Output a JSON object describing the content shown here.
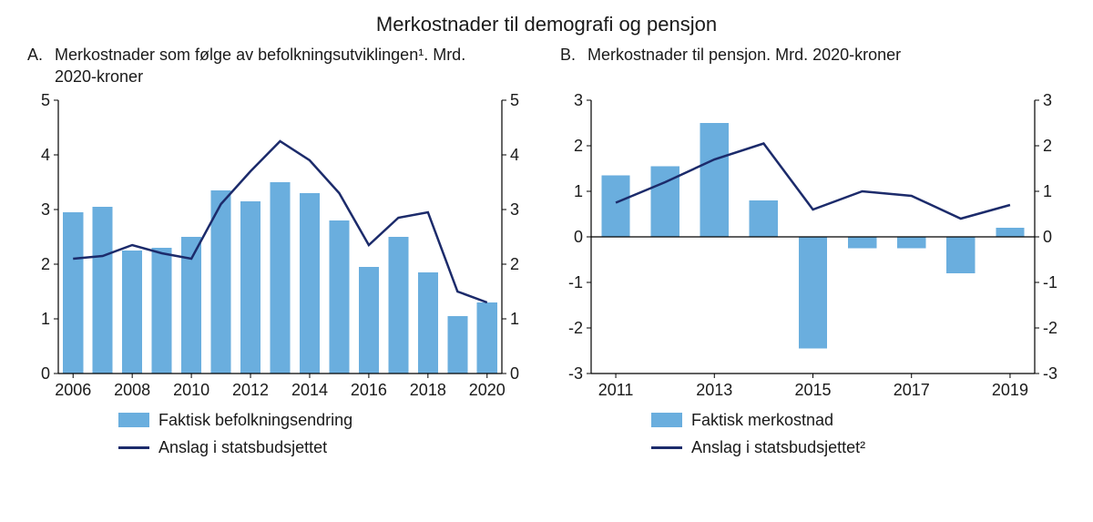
{
  "title": "Merkostnader til demografi og pensjon",
  "colors": {
    "bar": "#6aaede",
    "line": "#1c2b6b",
    "axis": "#000000",
    "text": "#1a1a1a",
    "background": "#ffffff"
  },
  "panelA": {
    "letter": "A.",
    "subtitle": "Merkostnader som følge av befolkningsutviklingen¹. Mrd. 2020-kroner",
    "type": "bar+line",
    "x_labels": [
      "2006",
      "",
      "2008",
      "",
      "2010",
      "",
      "2012",
      "",
      "2014",
      "",
      "2016",
      "",
      "2018",
      "",
      "2020"
    ],
    "years": [
      2006,
      2007,
      2008,
      2009,
      2010,
      2011,
      2012,
      2013,
      2014,
      2015,
      2016,
      2017,
      2018,
      2019,
      2020
    ],
    "bars": [
      2.95,
      3.05,
      2.25,
      2.3,
      2.5,
      3.35,
      3.15,
      3.5,
      3.3,
      2.8,
      1.95,
      2.5,
      1.85,
      1.05,
      1.3
    ],
    "line": [
      2.1,
      2.15,
      2.35,
      2.2,
      2.1,
      3.1,
      3.7,
      4.25,
      3.9,
      3.3,
      2.35,
      2.85,
      2.95,
      1.5,
      1.3
    ],
    "ylim": [
      0,
      5
    ],
    "ytick_step": 1,
    "bar_width": 0.68,
    "legend": {
      "bar": "Faktisk befolkningsendring",
      "line": "Anslag i statsbudsjettet"
    },
    "axis_fontsize": 18,
    "line_width": 2.5
  },
  "panelB": {
    "letter": "B.",
    "subtitle": "Merkostnader til pensjon. Mrd. 2020-kroner",
    "type": "bar+line",
    "x_labels": [
      "2011",
      "",
      "2013",
      "",
      "2015",
      "",
      "2017",
      "",
      "2019"
    ],
    "years": [
      2011,
      2012,
      2013,
      2014,
      2015,
      2016,
      2017,
      2018,
      2019
    ],
    "bars": [
      1.35,
      1.55,
      2.5,
      0.8,
      -2.45,
      -0.25,
      -0.25,
      -0.8,
      0.2
    ],
    "line": [
      0.75,
      1.2,
      1.7,
      2.05,
      0.6,
      1.0,
      0.9,
      0.4,
      0.7
    ],
    "ylim": [
      -3,
      3
    ],
    "ytick_step": 1,
    "bar_width": 0.58,
    "legend": {
      "bar": "Faktisk merkostnad",
      "line": "Anslag i statsbudsjettet²"
    },
    "axis_fontsize": 18,
    "line_width": 2.5
  }
}
